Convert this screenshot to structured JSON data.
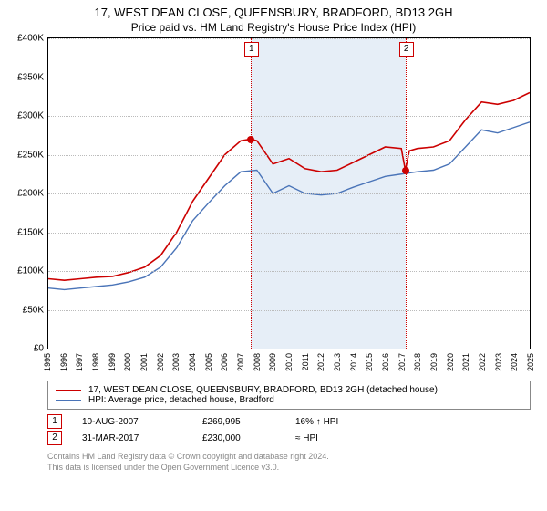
{
  "title": "17, WEST DEAN CLOSE, QUEENSBURY, BRADFORD, BD13 2GH",
  "subtitle": "Price paid vs. HM Land Registry's House Price Index (HPI)",
  "chart": {
    "type": "line",
    "ylim": [
      0,
      400000
    ],
    "ytick_step": 50000,
    "yticks": [
      "£0",
      "£50K",
      "£100K",
      "£150K",
      "£200K",
      "£250K",
      "£300K",
      "£350K",
      "£400K"
    ],
    "xyears": [
      1995,
      1996,
      1997,
      1998,
      1999,
      2000,
      2001,
      2002,
      2003,
      2004,
      2005,
      2006,
      2007,
      2008,
      2009,
      2010,
      2011,
      2012,
      2013,
      2014,
      2015,
      2016,
      2017,
      2018,
      2019,
      2020,
      2021,
      2022,
      2023,
      2024,
      2025
    ],
    "shade": {
      "start_year": 2007.6,
      "end_year": 2017.25,
      "color": "#e6eef7"
    },
    "series": [
      {
        "name": "price",
        "color": "#cc0000",
        "width": 1.6,
        "points": [
          [
            1995,
            90000
          ],
          [
            1996,
            88000
          ],
          [
            1997,
            90000
          ],
          [
            1998,
            92000
          ],
          [
            1999,
            93000
          ],
          [
            2000,
            98000
          ],
          [
            2001,
            105000
          ],
          [
            2002,
            120000
          ],
          [
            2003,
            150000
          ],
          [
            2004,
            190000
          ],
          [
            2005,
            220000
          ],
          [
            2006,
            250000
          ],
          [
            2007,
            268000
          ],
          [
            2007.6,
            270000
          ],
          [
            2008,
            268000
          ],
          [
            2009,
            238000
          ],
          [
            2010,
            245000
          ],
          [
            2011,
            232000
          ],
          [
            2012,
            228000
          ],
          [
            2013,
            230000
          ],
          [
            2014,
            240000
          ],
          [
            2015,
            250000
          ],
          [
            2016,
            260000
          ],
          [
            2017,
            258000
          ],
          [
            2017.25,
            230000
          ],
          [
            2017.5,
            255000
          ],
          [
            2018,
            258000
          ],
          [
            2019,
            260000
          ],
          [
            2020,
            268000
          ],
          [
            2021,
            295000
          ],
          [
            2022,
            318000
          ],
          [
            2023,
            315000
          ],
          [
            2024,
            320000
          ],
          [
            2025,
            330000
          ]
        ]
      },
      {
        "name": "hpi",
        "color": "#4a74b8",
        "width": 1.4,
        "points": [
          [
            1995,
            78000
          ],
          [
            1996,
            76000
          ],
          [
            1997,
            78000
          ],
          [
            1998,
            80000
          ],
          [
            1999,
            82000
          ],
          [
            2000,
            86000
          ],
          [
            2001,
            92000
          ],
          [
            2002,
            105000
          ],
          [
            2003,
            130000
          ],
          [
            2004,
            165000
          ],
          [
            2005,
            188000
          ],
          [
            2006,
            210000
          ],
          [
            2007,
            228000
          ],
          [
            2008,
            230000
          ],
          [
            2009,
            200000
          ],
          [
            2010,
            210000
          ],
          [
            2011,
            200000
          ],
          [
            2012,
            198000
          ],
          [
            2013,
            200000
          ],
          [
            2014,
            208000
          ],
          [
            2015,
            215000
          ],
          [
            2016,
            222000
          ],
          [
            2017,
            225000
          ],
          [
            2018,
            228000
          ],
          [
            2019,
            230000
          ],
          [
            2020,
            238000
          ],
          [
            2021,
            260000
          ],
          [
            2022,
            282000
          ],
          [
            2023,
            278000
          ],
          [
            2024,
            285000
          ],
          [
            2025,
            292000
          ]
        ]
      }
    ],
    "event_lines": [
      {
        "n": "1",
        "year": 2007.6,
        "color": "#cc0000",
        "dot_y": 270000
      },
      {
        "n": "2",
        "year": 2017.25,
        "color": "#cc0000",
        "dot_y": 230000
      }
    ]
  },
  "legend": [
    {
      "color": "#cc0000",
      "label": "17, WEST DEAN CLOSE, QUEENSBURY, BRADFORD, BD13 2GH (detached house)"
    },
    {
      "color": "#4a74b8",
      "label": "HPI: Average price, detached house, Bradford"
    }
  ],
  "events": [
    {
      "n": "1",
      "color": "#cc0000",
      "date": "10-AUG-2007",
      "price": "£269,995",
      "delta": "16% ↑ HPI"
    },
    {
      "n": "2",
      "color": "#cc0000",
      "date": "31-MAR-2017",
      "price": "£230,000",
      "delta": "≈ HPI"
    }
  ],
  "footer": {
    "line1": "Contains HM Land Registry data © Crown copyright and database right 2024.",
    "line2": "This data is licensed under the Open Government Licence v3.0."
  }
}
